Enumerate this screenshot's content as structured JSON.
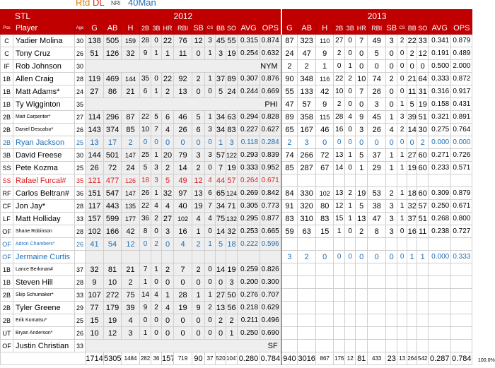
{
  "legend": [
    {
      "text": "Rtd",
      "color": "#e07a00"
    },
    {
      "text": "DL",
      "color": "#e02020"
    },
    {
      "text": "NRI",
      "color": "#444444"
    },
    {
      "text": "40Man",
      "color": "#1e6fb6"
    }
  ],
  "team": "STL",
  "season_left": "2012",
  "season_right": "2013",
  "headers": {
    "pos": "Pos",
    "player": "Player",
    "age": "Age",
    "stats": [
      "G",
      "AB",
      "H",
      "2B",
      "3B",
      "HR",
      "RBI",
      "SB",
      "CS",
      "BB",
      "SO",
      "AVG",
      "OPS"
    ]
  },
  "rows": [
    {
      "pos": "C",
      "name": "Yadier Molina",
      "age": "30",
      "s12": [
        "138",
        "505",
        "159",
        "28",
        "0",
        "22",
        "76",
        "12",
        "3",
        "45",
        "55",
        "0.315",
        "0.874"
      ],
      "s13": [
        "87",
        "323",
        "110",
        "27",
        "0",
        "7",
        "49",
        "3",
        "2",
        "22",
        "33",
        "0.341",
        "0.879"
      ]
    },
    {
      "pos": "C",
      "name": "Tony Cruz",
      "age": "26",
      "s12": [
        "51",
        "126",
        "32",
        "9",
        "1",
        "1",
        "11",
        "0",
        "1",
        "3",
        "19",
        "0.254",
        "0.632"
      ],
      "s13": [
        "24",
        "47",
        "9",
        "2",
        "0",
        "0",
        "5",
        "0",
        "0",
        "2",
        "12",
        "0.191",
        "0.489"
      ]
    },
    {
      "pos": "IF",
      "name": "Rob Johnson",
      "age": "30",
      "note12": "NYM",
      "s13": [
        "2",
        "2",
        "1",
        "0",
        "1",
        "0",
        "0",
        "0",
        "0",
        "0",
        "0",
        "0.500",
        "2.000"
      ]
    },
    {
      "pos": "1B",
      "name": "Allen Craig",
      "age": "28",
      "s12": [
        "119",
        "469",
        "144",
        "35",
        "0",
        "22",
        "92",
        "2",
        "1",
        "37",
        "89",
        "0.307",
        "0.876"
      ],
      "s13": [
        "90",
        "348",
        "116",
        "22",
        "2",
        "10",
        "74",
        "2",
        "0",
        "21",
        "64",
        "0.333",
        "0.872"
      ]
    },
    {
      "pos": "1B",
      "name": "Matt Adams*",
      "age": "24",
      "s12": [
        "27",
        "86",
        "21",
        "6",
        "1",
        "2",
        "13",
        "0",
        "0",
        "5",
        "24",
        "0.244",
        "0.669"
      ],
      "s13": [
        "55",
        "133",
        "42",
        "10",
        "0",
        "7",
        "26",
        "0",
        "0",
        "11",
        "31",
        "0.316",
        "0.917"
      ]
    },
    {
      "pos": "1B",
      "name": "Ty Wigginton",
      "age": "35",
      "note12": "PHI",
      "s13": [
        "47",
        "57",
        "9",
        "2",
        "0",
        "0",
        "3",
        "0",
        "1",
        "5",
        "19",
        "0.158",
        "0.431"
      ]
    },
    {
      "pos": "2B",
      "name": "Matt Carpenter*",
      "age": "27",
      "small": true,
      "s12": [
        "114",
        "296",
        "87",
        "22",
        "5",
        "6",
        "46",
        "5",
        "1",
        "34",
        "63",
        "0.294",
        "0.828"
      ],
      "s13": [
        "89",
        "358",
        "115",
        "28",
        "4",
        "9",
        "45",
        "1",
        "3",
        "39",
        "51",
        "0.321",
        "0.891"
      ]
    },
    {
      "pos": "2B",
      "name": "Daniel Descalso*",
      "age": "26",
      "small": true,
      "s12": [
        "143",
        "374",
        "85",
        "10",
        "7",
        "4",
        "26",
        "6",
        "3",
        "34",
        "83",
        "0.227",
        "0.627"
      ],
      "s13": [
        "65",
        "167",
        "46",
        "16",
        "0",
        "3",
        "26",
        "4",
        "2",
        "14",
        "30",
        "0.275",
        "0.764"
      ]
    },
    {
      "pos": "2B",
      "name": "Ryan Jackson",
      "age": "25",
      "style": "blue",
      "s12": [
        "13",
        "17",
        "2",
        "0",
        "0",
        "0",
        "0",
        "0",
        "0",
        "1",
        "3",
        "0.118",
        "0.284"
      ],
      "s13": [
        "2",
        "3",
        "0",
        "0",
        "0",
        "0",
        "0",
        "0",
        "0",
        "0",
        "2",
        "0.000",
        "0.000"
      ]
    },
    {
      "pos": "3B",
      "name": "David Freese",
      "age": "30",
      "s12": [
        "144",
        "501",
        "147",
        "25",
        "1",
        "20",
        "79",
        "3",
        "3",
        "57",
        "122",
        "0.293",
        "0.839"
      ],
      "s13": [
        "74",
        "266",
        "72",
        "13",
        "1",
        "5",
        "37",
        "1",
        "1",
        "27",
        "60",
        "0.271",
        "0.726"
      ]
    },
    {
      "pos": "SS",
      "name": "Pete Kozma",
      "age": "25",
      "s12": [
        "26",
        "72",
        "24",
        "5",
        "3",
        "2",
        "14",
        "2",
        "0",
        "7",
        "19",
        "0.333",
        "0.952"
      ],
      "s13": [
        "85",
        "287",
        "67",
        "14",
        "0",
        "1",
        "29",
        "1",
        "1",
        "19",
        "60",
        "0.233",
        "0.571"
      ]
    },
    {
      "pos": "SS",
      "name": "Rafael Furcal#",
      "age": "35",
      "style": "red",
      "s12": [
        "121",
        "477",
        "126",
        "18",
        "3",
        "5",
        "49",
        "12",
        "4",
        "44",
        "57",
        "0.264",
        "0.671"
      ]
    },
    {
      "pos": "RF",
      "name": "Carlos Beltran#",
      "age": "36",
      "s12": [
        "151",
        "547",
        "147",
        "26",
        "1",
        "32",
        "97",
        "13",
        "6",
        "65",
        "124",
        "0.269",
        "0.842"
      ],
      "s13": [
        "84",
        "330",
        "102",
        "13",
        "2",
        "19",
        "53",
        "2",
        "1",
        "18",
        "60",
        "0.309",
        "0.879"
      ]
    },
    {
      "pos": "CF",
      "name": "Jon Jay*",
      "age": "28",
      "s12": [
        "117",
        "443",
        "135",
        "22",
        "4",
        "4",
        "40",
        "19",
        "7",
        "34",
        "71",
        "0.305",
        "0.773"
      ],
      "s13": [
        "91",
        "320",
        "80",
        "12",
        "1",
        "5",
        "38",
        "3",
        "1",
        "32",
        "57",
        "0.250",
        "0.671"
      ]
    },
    {
      "pos": "LF",
      "name": "Matt Holliday",
      "age": "33",
      "s12": [
        "157",
        "599",
        "177",
        "36",
        "2",
        "27",
        "102",
        "4",
        "4",
        "75",
        "132",
        "0.295",
        "0.877"
      ],
      "s13": [
        "83",
        "310",
        "83",
        "15",
        "1",
        "13",
        "47",
        "3",
        "1",
        "37",
        "51",
        "0.268",
        "0.800"
      ]
    },
    {
      "pos": "OF",
      "name": "Shane Robinson",
      "age": "28",
      "small": true,
      "s12": [
        "102",
        "166",
        "42",
        "8",
        "0",
        "3",
        "16",
        "1",
        "0",
        "14",
        "32",
        "0.253",
        "0.665"
      ],
      "s13": [
        "59",
        "63",
        "15",
        "1",
        "0",
        "2",
        "8",
        "3",
        "0",
        "16",
        "11",
        "0.238",
        "0.727"
      ]
    },
    {
      "pos": "OF",
      "name": "Adron Chambers*",
      "age": "26",
      "small": true,
      "style": "blue",
      "s12": [
        "41",
        "54",
        "12",
        "0",
        "2",
        "0",
        "4",
        "2",
        "1",
        "5",
        "18",
        "0.222",
        "0.596"
      ]
    },
    {
      "pos": "OF",
      "name": "Jermaine Curtis",
      "age": "",
      "style": "blue",
      "s13": [
        "3",
        "2",
        "0",
        "0",
        "0",
        "0",
        "0",
        "0",
        "0",
        "1",
        "1",
        "0.000",
        "0.333"
      ]
    },
    {
      "pos": "1B",
      "name": "Lance Berkman#",
      "age": "37",
      "small": true,
      "s12": [
        "32",
        "81",
        "21",
        "7",
        "1",
        "2",
        "7",
        "2",
        "0",
        "14",
        "19",
        "0.259",
        "0.826"
      ]
    },
    {
      "pos": "1B",
      "name": "Steven Hill",
      "age": "28",
      "s12": [
        "9",
        "10",
        "2",
        "1",
        "0",
        "0",
        "0",
        "0",
        "0",
        "0",
        "3",
        "0.200",
        "0.300"
      ]
    },
    {
      "pos": "2B",
      "name": "Skip Schumaker*",
      "age": "33",
      "small": true,
      "s12": [
        "107",
        "272",
        "75",
        "14",
        "4",
        "1",
        "28",
        "1",
        "1",
        "27",
        "50",
        "0.276",
        "0.707"
      ]
    },
    {
      "pos": "2B",
      "name": "Tyler Greene",
      "age": "29",
      "s12": [
        "77",
        "179",
        "39",
        "9",
        "2",
        "4",
        "19",
        "9",
        "2",
        "13",
        "56",
        "0.218",
        "0.629"
      ]
    },
    {
      "pos": "2B",
      "name": "Erik Komatsu*",
      "age": "25",
      "small": true,
      "s12": [
        "15",
        "19",
        "4",
        "0",
        "0",
        "0",
        "0",
        "0",
        "0",
        "2",
        "2",
        "0.211",
        "0.496"
      ]
    },
    {
      "pos": "UT",
      "name": "Bryan Anderson*",
      "age": "26",
      "small": true,
      "s12": [
        "10",
        "12",
        "3",
        "1",
        "0",
        "0",
        "0",
        "0",
        "0",
        "0",
        "1",
        "0.250",
        "0.690"
      ]
    },
    {
      "pos": "OF",
      "name": "Justin Christian",
      "age": "33",
      "note12": "SF"
    }
  ],
  "totals": {
    "s12": [
      "1714",
      "5305",
      "1484",
      "282",
      "36",
      "157",
      "719",
      "90",
      "37",
      "520",
      "1047",
      "0.280",
      "0.784"
    ],
    "s13": [
      "940",
      "3016",
      "867",
      "176",
      "12",
      "81",
      "433",
      "23",
      "13",
      "264",
      "542",
      "0.287",
      "0.784"
    ],
    "pct": "100.0%"
  }
}
